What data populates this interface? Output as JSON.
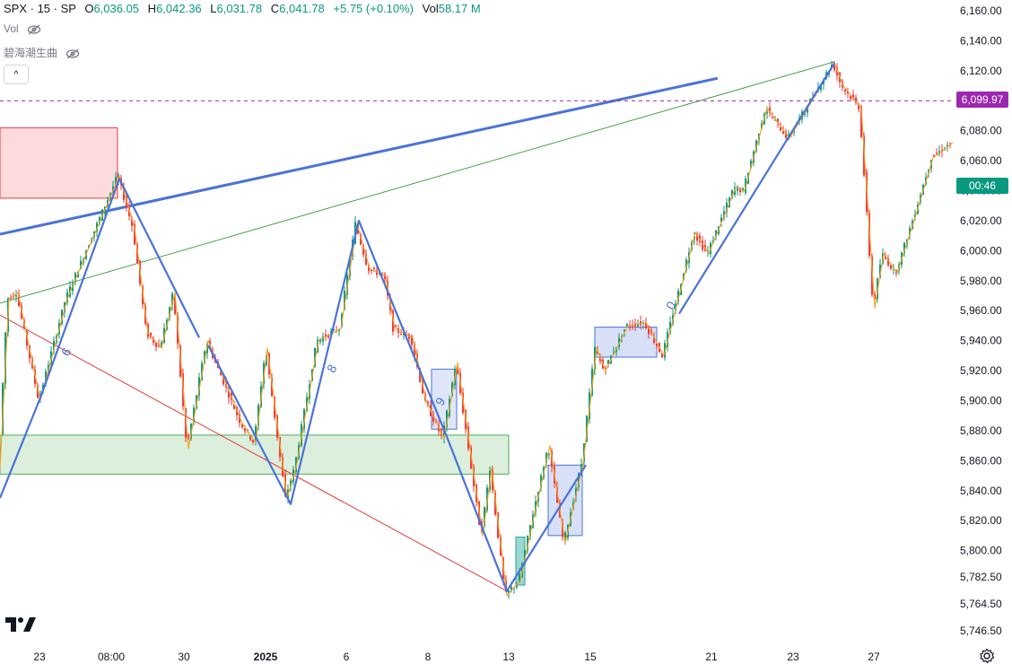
{
  "header": {
    "symbol": "SPX · 15 · SP",
    "open_label": "O",
    "open": "6,036.05",
    "high_label": "H",
    "high": "6,042.36",
    "low_label": "L",
    "low": "6,031.78",
    "close_label": "C",
    "close": "6,041.78",
    "change": "+5.75 (+0.10%)",
    "vol_label": "Vol",
    "vol": "58.17 M"
  },
  "indicators": [
    {
      "label": "Vol"
    },
    {
      "label": "碧海潮生曲"
    }
  ],
  "collapse_button": "^",
  "badges": {
    "current_price": "6,099.97",
    "countdown": "00:46"
  },
  "colors": {
    "up": "#089981",
    "down": "#f23645",
    "zigzag_blue": "#4a72d9",
    "thin_line": "#f5a623",
    "price_badge": "#9c27b0",
    "countdown_badge": "#089981"
  },
  "chart_data": {
    "type": "line",
    "y_ticks": [
      "6,160.00",
      "6,140.00",
      "6,120.00",
      "6,100.00",
      "6,080.00",
      "6,060.00",
      "6,040.00",
      "6,020.00",
      "6,000.00",
      "5,980.00",
      "5,960.00",
      "5,940.00",
      "5,920.00",
      "5,900.00",
      "5,880.00",
      "5,860.00",
      "5,840.00",
      "5,820.00",
      "5,800.00",
      "5,782.50",
      "5,764.50",
      "5,746.50"
    ],
    "x_ticks": [
      "23",
      "08:00",
      "30",
      "2025",
      "6",
      "8",
      "13",
      "15",
      "21",
      "23",
      "27"
    ],
    "ylim": [
      5740,
      6165
    ],
    "wave_labels": [
      "6",
      "8",
      "9",
      "0"
    ],
    "series": [
      {
        "style": "thin",
        "points": [
          [
            0,
            5855
          ],
          [
            10,
            5968
          ],
          [
            20,
            5972
          ],
          [
            45,
            5900
          ],
          [
            75,
            5968
          ],
          [
            133,
            6050
          ],
          [
            150,
            6015
          ],
          [
            165,
            5945
          ],
          [
            180,
            5935
          ],
          [
            195,
            5972
          ],
          [
            210,
            5868
          ],
          [
            232,
            5940
          ],
          [
            270,
            5885
          ],
          [
            285,
            5872
          ],
          [
            298,
            5935
          ],
          [
            320,
            5835
          ],
          [
            330,
            5855
          ],
          [
            355,
            5940
          ],
          [
            380,
            5948
          ],
          [
            398,
            6018
          ],
          [
            412,
            5988
          ],
          [
            430,
            5983
          ],
          [
            440,
            5948
          ],
          [
            460,
            5942
          ],
          [
            475,
            5900
          ],
          [
            495,
            5875
          ],
          [
            510,
            5925
          ],
          [
            520,
            5885
          ],
          [
            538,
            5810
          ],
          [
            548,
            5855
          ],
          [
            565,
            5770
          ],
          [
            580,
            5780
          ],
          [
            596,
            5825
          ],
          [
            613,
            5870
          ],
          [
            630,
            5805
          ],
          [
            650,
            5858
          ],
          [
            665,
            5935
          ],
          [
            675,
            5920
          ],
          [
            700,
            5950
          ],
          [
            720,
            5952
          ],
          [
            740,
            5930
          ],
          [
            775,
            6012
          ],
          [
            790,
            5998
          ],
          [
            820,
            6042
          ],
          [
            830,
            6040
          ],
          [
            855,
            6095
          ],
          [
            880,
            6075
          ],
          [
            900,
            6095
          ],
          [
            930,
            6125
          ],
          [
            940,
            6110
          ],
          [
            960,
            6095
          ],
          [
            975,
            5962
          ],
          [
            985,
            5998
          ],
          [
            1000,
            5985
          ],
          [
            1020,
            6022
          ],
          [
            1040,
            6062
          ],
          [
            1062,
            6072
          ]
        ]
      },
      {
        "style": "zigzag",
        "points": [
          [
            0,
            5835
          ],
          [
            45,
            5902
          ],
          [
            133,
            6048
          ],
          [
            222,
            5942
          ]
        ]
      },
      {
        "style": "zigzag",
        "points": [
          [
            232,
            5937
          ],
          [
            324,
            5831
          ],
          [
            400,
            6020
          ],
          [
            498,
            5876
          ],
          [
            565,
            5773
          ],
          [
            653,
            5857
          ]
        ]
      },
      {
        "style": "zigzag",
        "points": [
          [
            757,
            5958
          ],
          [
            930,
            6125
          ]
        ]
      }
    ]
  }
}
